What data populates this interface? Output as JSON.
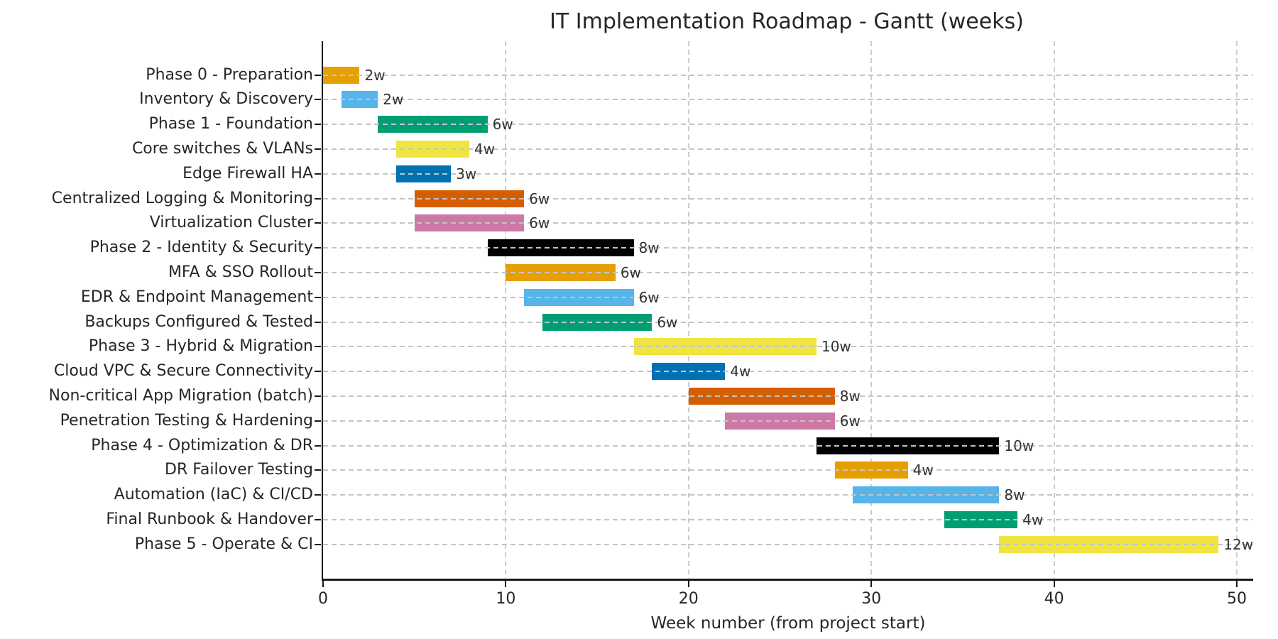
{
  "chart_data": {
    "type": "bar",
    "variant": "gantt-horizontal",
    "title": "IT Implementation Roadmap - Gantt (weeks)",
    "xlabel": "Week number (from project start)",
    "xlim": [
      0,
      50.9
    ],
    "xticks": [
      0,
      10,
      20,
      30,
      40,
      50
    ],
    "grid": "x-dashed-below-bars, row-dashed-lines-above-bars",
    "legend": "none",
    "bar_unit": "weeks",
    "tasks": [
      {
        "label": "Phase 0 - Preparation",
        "start": 0,
        "duration": 2,
        "duration_label": "2w",
        "color": "#E69F00"
      },
      {
        "label": "Inventory & Discovery",
        "start": 1,
        "duration": 2,
        "duration_label": "2w",
        "color": "#56B4E9"
      },
      {
        "label": "Phase 1 - Foundation",
        "start": 3,
        "duration": 6,
        "duration_label": "6w",
        "color": "#009E73"
      },
      {
        "label": "Core switches & VLANs",
        "start": 4,
        "duration": 4,
        "duration_label": "4w",
        "color": "#F0E442"
      },
      {
        "label": "Edge Firewall HA",
        "start": 4,
        "duration": 3,
        "duration_label": "3w",
        "color": "#0072B2"
      },
      {
        "label": "Centralized Logging & Monitoring",
        "start": 5,
        "duration": 6,
        "duration_label": "6w",
        "color": "#D55E00"
      },
      {
        "label": "Virtualization Cluster",
        "start": 5,
        "duration": 6,
        "duration_label": "6w",
        "color": "#CC79A7"
      },
      {
        "label": "Phase 2 - Identity & Security",
        "start": 9,
        "duration": 8,
        "duration_label": "8w",
        "color": "#000000"
      },
      {
        "label": "MFA & SSO Rollout",
        "start": 10,
        "duration": 6,
        "duration_label": "6w",
        "color": "#E69F00"
      },
      {
        "label": "EDR & Endpoint Management",
        "start": 11,
        "duration": 6,
        "duration_label": "6w",
        "color": "#56B4E9"
      },
      {
        "label": "Backups Configured & Tested",
        "start": 12,
        "duration": 6,
        "duration_label": "6w",
        "color": "#009E73"
      },
      {
        "label": "Phase 3 - Hybrid & Migration",
        "start": 17,
        "duration": 10,
        "duration_label": "10w",
        "color": "#F0E442"
      },
      {
        "label": "Cloud VPC & Secure Connectivity",
        "start": 18,
        "duration": 4,
        "duration_label": "4w",
        "color": "#0072B2"
      },
      {
        "label": "Non-critical App Migration (batch)",
        "start": 20,
        "duration": 8,
        "duration_label": "8w",
        "color": "#D55E00"
      },
      {
        "label": "Penetration Testing & Hardening",
        "start": 22,
        "duration": 6,
        "duration_label": "6w",
        "color": "#CC79A7"
      },
      {
        "label": "Phase 4 - Optimization & DR",
        "start": 27,
        "duration": 10,
        "duration_label": "10w",
        "color": "#000000"
      },
      {
        "label": "DR Failover Testing",
        "start": 28,
        "duration": 4,
        "duration_label": "4w",
        "color": "#E69F00"
      },
      {
        "label": "Automation (IaC) & CI/CD",
        "start": 29,
        "duration": 8,
        "duration_label": "8w",
        "color": "#56B4E9"
      },
      {
        "label": "Final Runbook & Handover",
        "start": 34,
        "duration": 4,
        "duration_label": "4w",
        "color": "#009E73"
      },
      {
        "label": "Phase 5 - Operate & CI",
        "start": 37,
        "duration": 12,
        "duration_label": "12w",
        "color": "#F0E442"
      }
    ],
    "palette_name": "Okabe-Ito",
    "text_color": "#262626",
    "gridline_color": "#c8c8c8",
    "axis_color": "#1a1a1a"
  }
}
